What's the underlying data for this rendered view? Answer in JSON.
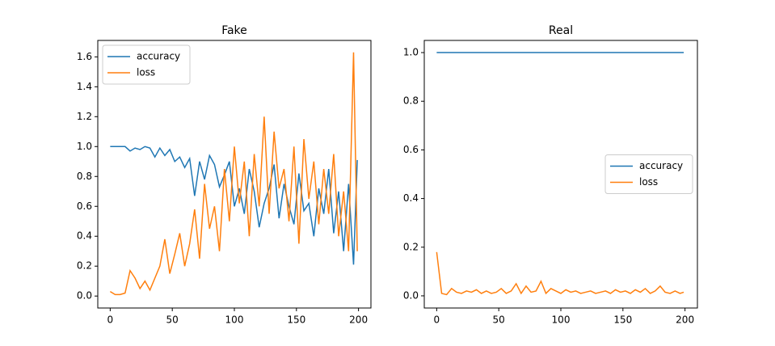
{
  "chart_data": [
    {
      "type": "line",
      "title": "Fake",
      "x": [
        0,
        4,
        8,
        12,
        16,
        20,
        24,
        28,
        32,
        36,
        40,
        44,
        48,
        52,
        56,
        60,
        64,
        68,
        72,
        76,
        80,
        84,
        88,
        92,
        96,
        100,
        104,
        108,
        112,
        116,
        120,
        124,
        128,
        132,
        136,
        140,
        144,
        148,
        152,
        156,
        160,
        164,
        168,
        172,
        176,
        180,
        184,
        188,
        192,
        196,
        199
      ],
      "series": [
        {
          "name": "accuracy",
          "color": "#1f77b4",
          "values": [
            1.0,
            1.0,
            1.0,
            1.0,
            0.97,
            0.99,
            0.98,
            1.0,
            0.99,
            0.93,
            0.99,
            0.94,
            0.98,
            0.9,
            0.93,
            0.86,
            0.92,
            0.67,
            0.9,
            0.78,
            0.94,
            0.88,
            0.73,
            0.81,
            0.9,
            0.6,
            0.72,
            0.55,
            0.85,
            0.7,
            0.46,
            0.62,
            0.72,
            0.88,
            0.52,
            0.75,
            0.6,
            0.48,
            0.82,
            0.57,
            0.62,
            0.4,
            0.72,
            0.55,
            0.85,
            0.42,
            0.7,
            0.3,
            0.75,
            0.21,
            0.91
          ]
        },
        {
          "name": "loss",
          "color": "#ff7f0e",
          "values": [
            0.03,
            0.01,
            0.01,
            0.02,
            0.17,
            0.12,
            0.05,
            0.1,
            0.04,
            0.12,
            0.2,
            0.38,
            0.15,
            0.28,
            0.42,
            0.2,
            0.35,
            0.58,
            0.25,
            0.75,
            0.45,
            0.6,
            0.3,
            0.85,
            0.5,
            1.0,
            0.62,
            0.9,
            0.4,
            0.95,
            0.6,
            1.2,
            0.55,
            1.1,
            0.72,
            0.85,
            0.5,
            1.0,
            0.35,
            1.05,
            0.65,
            0.9,
            0.48,
            0.85,
            0.55,
            0.95,
            0.4,
            0.7,
            0.3,
            1.63,
            0.3
          ]
        }
      ],
      "xlim": [
        -10,
        210
      ],
      "xticks": [
        0,
        50,
        100,
        150,
        200
      ],
      "ylim": [
        -0.08,
        1.71
      ],
      "yticks": [
        {
          "value": 0,
          "label": "0.0"
        },
        {
          "value": 0.2,
          "label": "0.2"
        },
        {
          "value": 0.4,
          "label": "0.4"
        },
        {
          "value": 0.6,
          "label": "0.6"
        },
        {
          "value": 0.8,
          "label": "0.8"
        },
        {
          "value": 1.0,
          "label": "1.0"
        },
        {
          "value": 1.2,
          "label": "1.2"
        },
        {
          "value": 1.4,
          "label": "1.4"
        },
        {
          "value": 1.6,
          "label": "1.6"
        }
      ],
      "legend": "upper left"
    },
    {
      "type": "line",
      "title": "Real",
      "x": [
        0,
        4,
        8,
        12,
        16,
        20,
        24,
        28,
        32,
        36,
        40,
        44,
        48,
        52,
        56,
        60,
        64,
        68,
        72,
        76,
        80,
        84,
        88,
        92,
        96,
        100,
        104,
        108,
        112,
        116,
        120,
        124,
        128,
        132,
        136,
        140,
        144,
        148,
        152,
        156,
        160,
        164,
        168,
        172,
        176,
        180,
        184,
        188,
        192,
        196,
        199
      ],
      "series": [
        {
          "name": "accuracy",
          "color": "#1f77b4",
          "values": [
            1.0,
            1.0,
            1.0,
            1.0,
            1.0,
            1.0,
            1.0,
            1.0,
            1.0,
            1.0,
            1.0,
            1.0,
            1.0,
            1.0,
            1.0,
            1.0,
            1.0,
            1.0,
            1.0,
            1.0,
            1.0,
            1.0,
            1.0,
            1.0,
            1.0,
            1.0,
            1.0,
            1.0,
            1.0,
            1.0,
            1.0,
            1.0,
            1.0,
            1.0,
            1.0,
            1.0,
            1.0,
            1.0,
            1.0,
            1.0,
            1.0,
            1.0,
            1.0,
            1.0,
            1.0,
            1.0,
            1.0,
            1.0,
            1.0,
            1.0,
            1.0
          ]
        },
        {
          "name": "loss",
          "color": "#ff7f0e",
          "values": [
            0.18,
            0.01,
            0.005,
            0.03,
            0.015,
            0.01,
            0.02,
            0.015,
            0.025,
            0.01,
            0.02,
            0.01,
            0.015,
            0.03,
            0.01,
            0.02,
            0.05,
            0.01,
            0.04,
            0.015,
            0.02,
            0.06,
            0.01,
            0.03,
            0.02,
            0.01,
            0.025,
            0.015,
            0.02,
            0.01,
            0.015,
            0.02,
            0.01,
            0.015,
            0.02,
            0.01,
            0.025,
            0.015,
            0.02,
            0.01,
            0.025,
            0.015,
            0.03,
            0.01,
            0.02,
            0.04,
            0.015,
            0.01,
            0.02,
            0.01,
            0.015
          ]
        }
      ],
      "xlim": [
        -10,
        210
      ],
      "xticks": [
        0,
        50,
        100,
        150,
        200
      ],
      "ylim": [
        -0.05,
        1.05
      ],
      "yticks": [
        {
          "value": 0,
          "label": "0.0"
        },
        {
          "value": 0.2,
          "label": "0.2"
        },
        {
          "value": 0.4,
          "label": "0.4"
        },
        {
          "value": 0.6,
          "label": "0.6"
        },
        {
          "value": 0.8,
          "label": "0.8"
        },
        {
          "value": 1.0,
          "label": "1.0"
        }
      ],
      "legend": "center right"
    }
  ]
}
